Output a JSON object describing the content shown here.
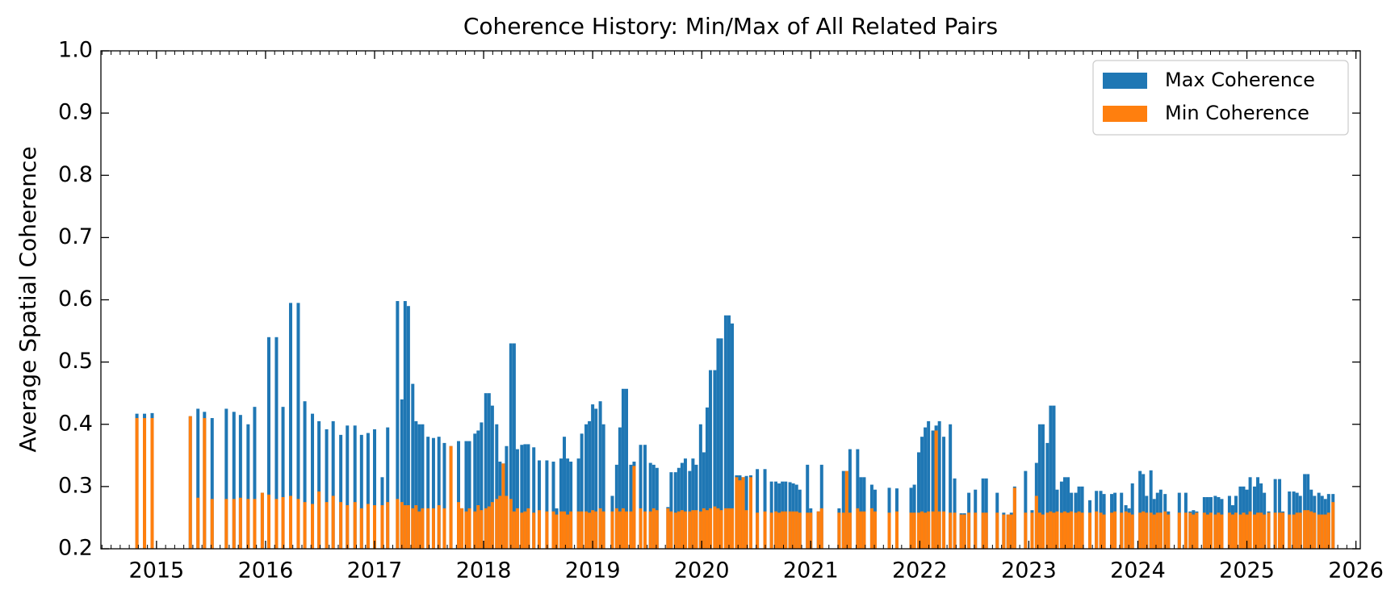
{
  "chart_data": {
    "type": "bar",
    "title": "Coherence History: Min/Max of All Related Pairs",
    "y_label": "Average Spatial Coherence",
    "x": [
      2014.82,
      2014.89,
      2014.96,
      2015.31,
      2015.38,
      2015.44,
      2015.51,
      2015.64,
      2015.71,
      2015.77,
      2015.84,
      2015.9,
      2015.97,
      2016.03,
      2016.1,
      2016.16,
      2016.23,
      2016.3,
      2016.36,
      2016.43,
      2016.49,
      2016.56,
      2016.62,
      2016.69,
      2016.75,
      2016.82,
      2016.88,
      2016.94,
      2017.0,
      2017.07,
      2017.12,
      2017.21,
      2017.25,
      2017.28,
      2017.31,
      2017.35,
      2017.38,
      2017.41,
      2017.44,
      2017.49,
      2017.54,
      2017.59,
      2017.64,
      2017.7,
      2017.77,
      2017.8,
      2017.84,
      2017.87,
      2017.92,
      2017.95,
      2017.98,
      2018.02,
      2018.05,
      2018.08,
      2018.12,
      2018.15,
      2018.18,
      2018.21,
      2018.25,
      2018.28,
      2018.31,
      2018.35,
      2018.38,
      2018.41,
      2018.46,
      2018.51,
      2018.58,
      2018.64,
      2018.67,
      2018.71,
      2018.74,
      2018.77,
      2018.8,
      2018.87,
      2018.9,
      2018.94,
      2018.97,
      2019.0,
      2019.03,
      2019.07,
      2019.1,
      2019.18,
      2019.22,
      2019.25,
      2019.28,
      2019.31,
      2019.35,
      2019.38,
      2019.44,
      2019.48,
      2019.53,
      2019.56,
      2019.59,
      2019.69,
      2019.72,
      2019.76,
      2019.79,
      2019.82,
      2019.85,
      2019.89,
      2019.92,
      2019.95,
      2019.99,
      2020.02,
      2020.05,
      2020.08,
      2020.12,
      2020.15,
      2020.18,
      2020.22,
      2020.25,
      2020.28,
      2020.32,
      2020.35,
      2020.38,
      2020.41,
      2020.45,
      2020.51,
      2020.58,
      2020.64,
      2020.68,
      2020.71,
      2020.74,
      2020.77,
      2020.81,
      2020.84,
      2020.87,
      2020.9,
      2020.97,
      2021.0,
      2021.07,
      2021.1,
      2021.26,
      2021.3,
      2021.33,
      2021.36,
      2021.43,
      2021.46,
      2021.49,
      2021.56,
      2021.59,
      2021.72,
      2021.79,
      2021.92,
      2021.95,
      2021.99,
      2022.02,
      2022.05,
      2022.08,
      2022.12,
      2022.15,
      2022.18,
      2022.22,
      2022.28,
      2022.32,
      2022.38,
      2022.41,
      2022.45,
      2022.51,
      2022.58,
      2022.61,
      2022.71,
      2022.77,
      2022.81,
      2022.84,
      2022.87,
      2022.97,
      2023.03,
      2023.07,
      2023.1,
      2023.13,
      2023.17,
      2023.2,
      2023.23,
      2023.26,
      2023.3,
      2023.33,
      2023.36,
      2023.39,
      2023.43,
      2023.46,
      2023.49,
      2023.56,
      2023.62,
      2023.66,
      2023.69,
      2023.76,
      2023.79,
      2023.85,
      2023.89,
      2023.92,
      2023.95,
      2024.02,
      2024.05,
      2024.08,
      2024.12,
      2024.15,
      2024.18,
      2024.21,
      2024.25,
      2024.28,
      2024.38,
      2024.44,
      2024.48,
      2024.51,
      2024.54,
      2024.61,
      2024.64,
      2024.67,
      2024.71,
      2024.74,
      2024.77,
      2024.84,
      2024.87,
      2024.9,
      2024.94,
      2024.97,
      2025.0,
      2025.03,
      2025.07,
      2025.1,
      2025.13,
      2025.16,
      2025.2,
      2025.26,
      2025.3,
      2025.33,
      2025.39,
      2025.43,
      2025.46,
      2025.49,
      2025.53,
      2025.56,
      2025.59,
      2025.62,
      2025.66,
      2025.69,
      2025.72,
      2025.75,
      2025.79
    ],
    "series": [
      {
        "name": "Max Coherence",
        "color": "#1f77b4",
        "values": [
          0.417,
          0.417,
          0.418,
          0.413,
          0.425,
          0.42,
          0.41,
          0.425,
          0.42,
          0.415,
          0.4,
          0.428,
          0.29,
          0.54,
          0.54,
          0.428,
          0.595,
          0.595,
          0.437,
          0.417,
          0.405,
          0.392,
          0.405,
          0.383,
          0.398,
          0.398,
          0.383,
          0.386,
          0.392,
          0.315,
          0.395,
          0.598,
          0.44,
          0.598,
          0.59,
          0.465,
          0.405,
          0.4,
          0.4,
          0.38,
          0.378,
          0.38,
          0.37,
          0.365,
          0.373,
          0.265,
          0.373,
          0.373,
          0.385,
          0.39,
          0.403,
          0.45,
          0.45,
          0.43,
          0.4,
          0.34,
          0.337,
          0.365,
          0.53,
          0.53,
          0.36,
          0.367,
          0.368,
          0.368,
          0.363,
          0.342,
          0.342,
          0.34,
          0.265,
          0.345,
          0.38,
          0.345,
          0.34,
          0.345,
          0.385,
          0.4,
          0.405,
          0.432,
          0.425,
          0.437,
          0.4,
          0.285,
          0.335,
          0.395,
          0.457,
          0.457,
          0.335,
          0.34,
          0.367,
          0.367,
          0.338,
          0.335,
          0.33,
          0.267,
          0.323,
          0.323,
          0.33,
          0.338,
          0.345,
          0.325,
          0.345,
          0.335,
          0.4,
          0.355,
          0.427,
          0.487,
          0.487,
          0.538,
          0.538,
          0.575,
          0.575,
          0.562,
          0.318,
          0.318,
          0.315,
          0.317,
          0.318,
          0.328,
          0.328,
          0.308,
          0.308,
          0.305,
          0.308,
          0.308,
          0.307,
          0.305,
          0.303,
          0.295,
          0.335,
          0.265,
          0.26,
          0.335,
          0.265,
          0.325,
          0.325,
          0.36,
          0.36,
          0.315,
          0.315,
          0.303,
          0.295,
          0.298,
          0.297,
          0.298,
          0.303,
          0.355,
          0.38,
          0.395,
          0.405,
          0.39,
          0.398,
          0.405,
          0.38,
          0.4,
          0.313,
          0.257,
          0.257,
          0.29,
          0.295,
          0.313,
          0.313,
          0.29,
          0.258,
          0.255,
          0.258,
          0.3,
          0.325,
          0.262,
          0.338,
          0.4,
          0.4,
          0.37,
          0.43,
          0.43,
          0.295,
          0.308,
          0.315,
          0.315,
          0.29,
          0.29,
          0.3,
          0.3,
          0.278,
          0.293,
          0.293,
          0.288,
          0.288,
          0.29,
          0.29,
          0.27,
          0.265,
          0.305,
          0.325,
          0.32,
          0.285,
          0.326,
          0.28,
          0.29,
          0.295,
          0.288,
          0.26,
          0.29,
          0.29,
          0.26,
          0.262,
          0.26,
          0.283,
          0.283,
          0.283,
          0.285,
          0.283,
          0.28,
          0.285,
          0.27,
          0.285,
          0.3,
          0.3,
          0.295,
          0.315,
          0.3,
          0.315,
          0.305,
          0.29,
          0.26,
          0.312,
          0.312,
          0.26,
          0.292,
          0.292,
          0.29,
          0.285,
          0.32,
          0.32,
          0.295,
          0.285,
          0.29,
          0.285,
          0.28,
          0.288,
          0.288
        ]
      },
      {
        "name": "Min Coherence",
        "color": "#ff7f0e",
        "values": [
          0.41,
          0.41,
          0.41,
          0.413,
          0.282,
          0.41,
          0.28,
          0.28,
          0.28,
          0.282,
          0.28,
          0.28,
          0.29,
          0.287,
          0.28,
          0.283,
          0.285,
          0.28,
          0.275,
          0.272,
          0.292,
          0.275,
          0.285,
          0.275,
          0.27,
          0.275,
          0.265,
          0.272,
          0.27,
          0.27,
          0.275,
          0.28,
          0.275,
          0.27,
          0.27,
          0.265,
          0.27,
          0.26,
          0.265,
          0.265,
          0.265,
          0.27,
          0.265,
          0.365,
          0.275,
          0.265,
          0.26,
          0.265,
          0.26,
          0.27,
          0.262,
          0.265,
          0.268,
          0.275,
          0.28,
          0.285,
          0.337,
          0.285,
          0.28,
          0.26,
          0.265,
          0.258,
          0.26,
          0.265,
          0.258,
          0.262,
          0.26,
          0.26,
          0.255,
          0.26,
          0.26,
          0.255,
          0.26,
          0.26,
          0.26,
          0.26,
          0.258,
          0.262,
          0.26,
          0.265,
          0.26,
          0.26,
          0.265,
          0.26,
          0.265,
          0.26,
          0.26,
          0.333,
          0.265,
          0.26,
          0.26,
          0.265,
          0.262,
          0.265,
          0.26,
          0.258,
          0.26,
          0.262,
          0.26,
          0.26,
          0.262,
          0.262,
          0.26,
          0.265,
          0.262,
          0.265,
          0.268,
          0.265,
          0.262,
          0.265,
          0.265,
          0.265,
          0.315,
          0.31,
          0.315,
          0.262,
          0.315,
          0.258,
          0.26,
          0.258,
          0.26,
          0.258,
          0.26,
          0.26,
          0.26,
          0.26,
          0.26,
          0.258,
          0.258,
          0.258,
          0.26,
          0.265,
          0.258,
          0.258,
          0.325,
          0.258,
          0.265,
          0.26,
          0.26,
          0.265,
          0.26,
          0.258,
          0.26,
          0.258,
          0.258,
          0.258,
          0.26,
          0.258,
          0.26,
          0.26,
          0.39,
          0.26,
          0.26,
          0.258,
          0.258,
          0.255,
          0.255,
          0.258,
          0.258,
          0.258,
          0.258,
          0.258,
          0.255,
          0.255,
          0.255,
          0.298,
          0.258,
          0.258,
          0.285,
          0.258,
          0.255,
          0.258,
          0.26,
          0.258,
          0.26,
          0.258,
          0.26,
          0.258,
          0.26,
          0.258,
          0.26,
          0.258,
          0.258,
          0.26,
          0.258,
          0.255,
          0.258,
          0.26,
          0.258,
          0.26,
          0.258,
          0.255,
          0.258,
          0.26,
          0.258,
          0.258,
          0.255,
          0.258,
          0.258,
          0.26,
          0.255,
          0.258,
          0.258,
          0.258,
          0.255,
          0.258,
          0.258,
          0.255,
          0.258,
          0.255,
          0.258,
          0.255,
          0.258,
          0.255,
          0.258,
          0.255,
          0.258,
          0.255,
          0.26,
          0.255,
          0.258,
          0.258,
          0.255,
          0.258,
          0.258,
          0.258,
          0.258,
          0.255,
          0.255,
          0.258,
          0.258,
          0.262,
          0.262,
          0.26,
          0.258,
          0.255,
          0.255,
          0.255,
          0.258,
          0.275
        ]
      }
    ],
    "xlim": [
      2014.49,
      2026.04
    ],
    "ylim": [
      0.2,
      1.0
    ],
    "xticks": [
      2015,
      2016,
      2017,
      2018,
      2019,
      2020,
      2021,
      2022,
      2023,
      2024,
      2025,
      2026
    ],
    "yticks": [
      0.2,
      0.3,
      0.4,
      0.5,
      0.6,
      0.7,
      0.8,
      0.9,
      {
        "value": 1.0,
        "label": "1.0"
      }
    ],
    "legend": "upper right",
    "grid": false
  }
}
